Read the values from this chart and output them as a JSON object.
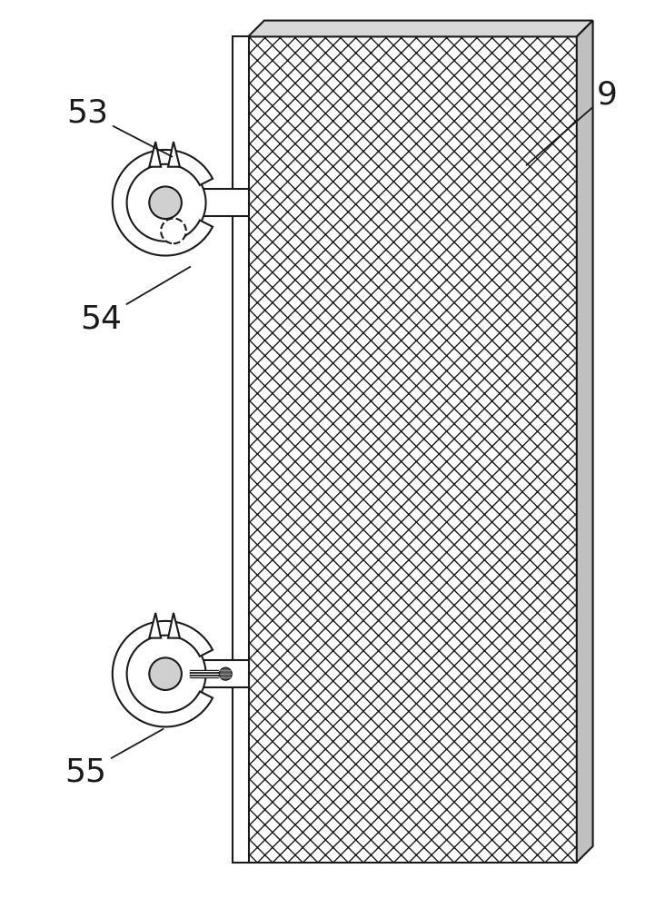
{
  "bg_color": "#ffffff",
  "line_color": "#1a1a1a",
  "label_53": "53",
  "label_54": "54",
  "label_55": "55",
  "label_9": "9",
  "label_fontsize": 26,
  "fig_width": 7.21,
  "fig_height": 10.0
}
